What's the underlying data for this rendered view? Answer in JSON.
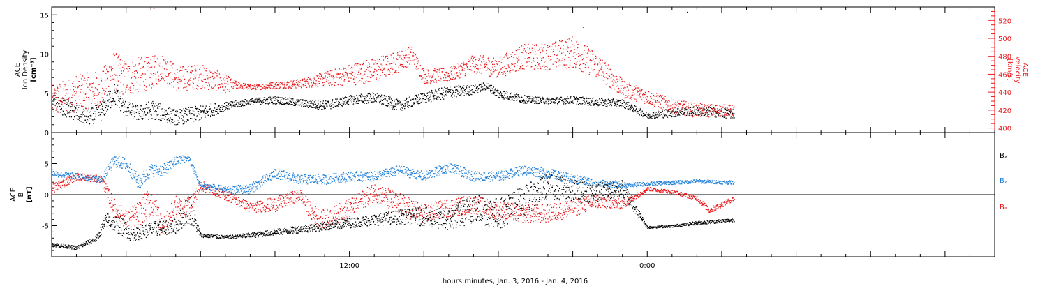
{
  "colors": {
    "density": "#000000",
    "velocity": "#e8191d",
    "bx": "#000000",
    "by": "#1f7fd6",
    "bz": "#e8191d",
    "axes": "#000000"
  },
  "xlabel": "hours:minutes, Jan.  3, 2016 - Jan.  4, 2016",
  "chart_data": [
    {
      "type": "scatter",
      "panel": "top",
      "ylabel_left": [
        "ACE",
        "Ion Density",
        "[cm⁻³]"
      ],
      "ylabel_right": [
        "ACE",
        "Velocity",
        "[km/s]"
      ],
      "x_unit": "hours since Jan. 3, 2016 00:00",
      "xlim": [
        0,
        38
      ],
      "ylim_left": [
        0,
        16
      ],
      "ylim_right": [
        395,
        535
      ],
      "y_ticks_left": [
        "0",
        "5",
        "10",
        "15"
      ],
      "y_ticks_right": [
        "400",
        "420",
        "440",
        "460",
        "480",
        "500",
        "520"
      ],
      "series": [
        {
          "axis": "left",
          "color_key": "density",
          "x": [
            0.0,
            1.0,
            1.5,
            2.0,
            2.5,
            3.0,
            3.5,
            4.0,
            5.0,
            6.0,
            6.5,
            7.0,
            8.0,
            9.0,
            10.0,
            11.0,
            12.0,
            13.0,
            14.0,
            15.0,
            16.0,
            17.0,
            17.5,
            18.0,
            19.0,
            20.0,
            21.0,
            22.0,
            23.0,
            24.0,
            25.0,
            26.0,
            27.5
          ],
          "y": [
            4.0,
            2.5,
            2.0,
            2.8,
            5.0,
            3.0,
            2.5,
            3.0,
            2.0,
            2.5,
            3.0,
            3.4,
            4.0,
            4.2,
            3.8,
            3.5,
            4.2,
            4.5,
            3.5,
            4.5,
            5.2,
            5.5,
            6.0,
            5.0,
            4.3,
            4.1,
            4.2,
            3.9,
            3.8,
            2.2,
            2.6,
            2.8,
            2.4
          ],
          "scatter": [
            1.0,
            1.2,
            1.0,
            1.2,
            1.4,
            1.0,
            1.0,
            1.2,
            1.0,
            1.0,
            0.8,
            0.5,
            0.4,
            0.5,
            0.5,
            0.6,
            0.6,
            0.7,
            0.7,
            0.7,
            0.8,
            0.6,
            0.5,
            0.6,
            0.5,
            0.4,
            0.5,
            0.5,
            0.5,
            0.4,
            0.6,
            0.6,
            0.6
          ],
          "outliers": [
            {
              "x": 25.6,
              "y": 15.4
            }
          ]
        },
        {
          "axis": "right",
          "color_key": "velocity",
          "x": [
            0.0,
            1.0,
            2.0,
            2.5,
            3.0,
            3.5,
            4.0,
            4.5,
            5.0,
            6.0,
            7.0,
            7.5,
            8.0,
            9.0,
            10.0,
            11.0,
            12.0,
            13.0,
            14.0,
            14.5,
            15.0,
            16.0,
            17.0,
            18.0,
            19.0,
            20.0,
            21.0,
            22.0,
            23.0,
            24.0,
            25.0,
            26.0,
            27.5
          ],
          "y": [
            430,
            440,
            445,
            465,
            455,
            460,
            462,
            470,
            455,
            458,
            450,
            448,
            446,
            448,
            450,
            455,
            460,
            465,
            475,
            482,
            458,
            460,
            472,
            468,
            480,
            480,
            485,
            470,
            444,
            435,
            425,
            420,
            420
          ],
          "scatter": [
            18,
            20,
            20,
            22,
            20,
            20,
            18,
            16,
            14,
            14,
            10,
            4,
            3,
            4,
            5,
            8,
            12,
            14,
            12,
            10,
            8,
            8,
            10,
            12,
            14,
            15,
            18,
            14,
            10,
            8,
            8,
            8,
            6
          ],
          "outliers": [
            {
              "x": 4.1,
              "y": 534
            },
            {
              "x": 21.4,
              "y": 513
            }
          ]
        }
      ]
    },
    {
      "type": "scatter",
      "panel": "bottom",
      "ylabel_left": [
        "ACE",
        "B",
        "[nT]"
      ],
      "xlim": [
        0,
        38
      ],
      "ylim": [
        -10,
        10
      ],
      "y_ticks": [
        "-5",
        "0",
        "5"
      ],
      "zero_line": true,
      "legend": [
        "Bₓ",
        "Bᵧ",
        "Bₔ"
      ],
      "legend_placement": "right",
      "series": [
        {
          "name": "Bₓ",
          "color_key": "bx",
          "x": [
            0.0,
            1.0,
            1.8,
            2.2,
            2.8,
            3.2,
            4.0,
            5.0,
            5.5,
            6.0,
            7.0,
            8.0,
            9.0,
            10.0,
            11.0,
            12.0,
            13.0,
            14.0,
            15.0,
            16.0,
            17.0,
            18.0,
            19.0,
            20.0,
            21.0,
            22.0,
            23.0,
            24.0,
            25.0,
            26.0,
            27.5
          ],
          "y": [
            -8.0,
            -8.5,
            -7.0,
            -4.0,
            -5.0,
            -6.5,
            -5.5,
            -5.0,
            -2.0,
            -6.5,
            -6.8,
            -6.5,
            -6.0,
            -5.5,
            -5.0,
            -4.5,
            -4.0,
            -3.5,
            -3.5,
            -4.0,
            -2.0,
            -3.0,
            -1.0,
            1.5,
            0.5,
            0.5,
            1.0,
            -5.2,
            -5.0,
            -4.5,
            -4.0
          ],
          "scatter": [
            0.3,
            0.3,
            0.5,
            1.2,
            1.5,
            1.0,
            1.2,
            1.2,
            2.5,
            0.3,
            0.3,
            0.4,
            0.5,
            0.6,
            0.7,
            0.8,
            0.9,
            1.2,
            1.5,
            1.8,
            2.5,
            2.5,
            2.5,
            2.0,
            2.0,
            1.5,
            1.5,
            0.2,
            0.2,
            0.3,
            0.3
          ]
        },
        {
          "name": "Bᵧ",
          "color_key": "by",
          "x": [
            0.0,
            1.0,
            2.0,
            2.5,
            3.0,
            3.5,
            4.0,
            4.5,
            5.0,
            5.5,
            6.0,
            7.0,
            8.0,
            9.0,
            10.0,
            11.0,
            12.0,
            13.0,
            14.0,
            15.0,
            16.0,
            17.0,
            18.0,
            19.0,
            20.0,
            21.0,
            22.0,
            23.0,
            24.0,
            25.0,
            26.0,
            27.5
          ],
          "y": [
            3.5,
            3.0,
            2.5,
            5.5,
            5.0,
            2.0,
            4.0,
            4.0,
            5.5,
            6.0,
            1.5,
            0.8,
            1.0,
            3.5,
            2.5,
            2.5,
            3.0,
            3.0,
            4.0,
            3.0,
            4.5,
            3.0,
            3.0,
            4.0,
            3.5,
            2.5,
            2.0,
            1.5,
            1.8,
            2.0,
            2.2,
            2.0
          ],
          "scatter": [
            0.5,
            0.5,
            0.5,
            1.0,
            1.0,
            1.2,
            1.0,
            1.0,
            0.8,
            0.5,
            0.6,
            0.6,
            0.8,
            0.8,
            0.8,
            0.8,
            0.8,
            0.8,
            0.8,
            0.8,
            0.8,
            0.8,
            0.8,
            0.8,
            0.8,
            0.8,
            0.6,
            0.4,
            0.3,
            0.3,
            0.3,
            0.3
          ]
        },
        {
          "name": "Bₔ",
          "color_key": "bz",
          "x": [
            0.0,
            1.0,
            2.0,
            2.5,
            3.0,
            3.5,
            4.0,
            4.5,
            5.0,
            5.5,
            6.0,
            7.0,
            8.0,
            9.0,
            10.0,
            10.5,
            11.0,
            12.0,
            13.0,
            14.0,
            15.0,
            16.0,
            17.0,
            18.0,
            19.0,
            20.0,
            21.0,
            22.0,
            23.0,
            24.0,
            25.0,
            26.0,
            26.5,
            27.5
          ],
          "y": [
            1.0,
            3.0,
            2.5,
            -2.0,
            -4.0,
            -3.0,
            -1.0,
            -5.0,
            -2.0,
            -2.0,
            1.5,
            0.0,
            -2.0,
            -1.5,
            0.0,
            -3.0,
            -4.0,
            -2.0,
            0.5,
            -1.5,
            -3.0,
            -2.0,
            -1.5,
            -2.5,
            -3.0,
            -3.0,
            -2.0,
            -1.0,
            -1.5,
            1.0,
            0.5,
            -0.5,
            -2.5,
            -0.5
          ],
          "scatter": [
            0.8,
            0.6,
            0.6,
            1.5,
            1.5,
            2.0,
            2.5,
            1.5,
            2.0,
            1.5,
            0.8,
            0.8,
            0.8,
            1.2,
            1.0,
            1.5,
            1.5,
            1.5,
            1.5,
            1.8,
            1.5,
            1.5,
            1.5,
            1.5,
            1.5,
            1.5,
            1.5,
            1.2,
            0.8,
            0.3,
            0.3,
            0.4,
            0.5,
            0.4
          ]
        }
      ]
    }
  ],
  "x_ticks": [
    {
      "x": 12,
      "label": "12:00"
    },
    {
      "x": 24,
      "label": "0:00"
    }
  ]
}
